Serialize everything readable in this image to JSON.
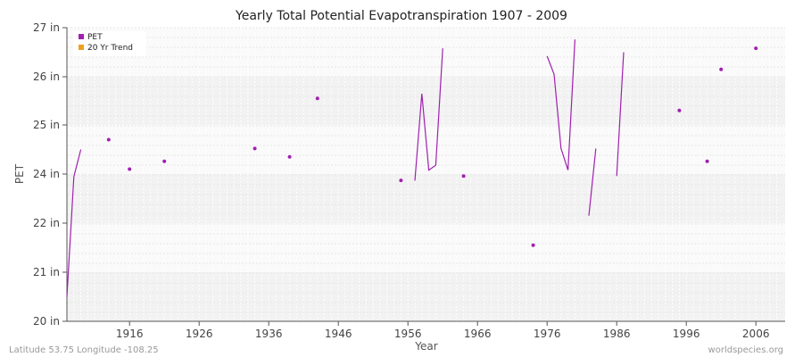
{
  "chart_data": {
    "type": "line",
    "title": "Yearly Total Potential Evapotranspiration 1907 - 2009",
    "xlabel": "Year",
    "ylabel": "PET",
    "xlim": [
      1907,
      2009
    ],
    "y_ticks": [
      {
        "label": "20 in",
        "value": 20
      },
      {
        "label": "21 in",
        "value": 21
      },
      {
        "label": "22 in",
        "value": 22
      },
      {
        "label": "24 in",
        "value": 24
      },
      {
        "label": "25 in",
        "value": 25
      },
      {
        "label": "26 in",
        "value": 26
      },
      {
        "label": "27 in",
        "value": 27
      }
    ],
    "x_ticks": [
      "1916",
      "1926",
      "1936",
      "1946",
      "1956",
      "1966",
      "1976",
      "1986",
      "1996",
      "2006"
    ],
    "grid": true,
    "legend_position": "top-left",
    "series": [
      {
        "name": "PET",
        "color": "#a020b0",
        "points": [
          [
            1907,
            20.5
          ],
          [
            1908,
            23.9
          ],
          [
            1909,
            24.5
          ],
          [
            1913,
            24.7
          ],
          [
            1916,
            24.1
          ],
          [
            1921,
            24.26
          ],
          [
            1934,
            24.52
          ],
          [
            1939,
            24.35
          ],
          [
            1943,
            25.55
          ],
          [
            1955,
            23.74
          ],
          [
            1964,
            23.92
          ],
          [
            1974,
            21.55
          ],
          [
            1957,
            23.73
          ],
          [
            1958,
            25.65
          ],
          [
            1959,
            24.08
          ],
          [
            1960,
            24.18
          ],
          [
            1961,
            26.58
          ],
          [
            1976,
            26.42
          ],
          [
            1977,
            26.05
          ],
          [
            1978,
            24.52
          ],
          [
            1979,
            24.08
          ],
          [
            1980,
            26.76
          ],
          [
            1982,
            22.3
          ],
          [
            1983,
            24.52
          ],
          [
            1986,
            23.92
          ],
          [
            1987,
            26.5
          ],
          [
            1995,
            25.3
          ],
          [
            1999,
            24.26
          ],
          [
            2001,
            26.15
          ],
          [
            2006,
            26.58
          ]
        ],
        "segments": [
          [
            [
              1907,
              20.5
            ],
            [
              1908,
              23.9
            ],
            [
              1909,
              24.5
            ]
          ],
          [
            [
              1957,
              23.73
            ],
            [
              1958,
              25.65
            ],
            [
              1959,
              24.08
            ],
            [
              1960,
              24.18
            ],
            [
              1961,
              26.58
            ]
          ],
          [
            [
              1976,
              26.42
            ],
            [
              1977,
              26.05
            ],
            [
              1978,
              24.52
            ],
            [
              1979,
              24.08
            ],
            [
              1980,
              26.76
            ]
          ],
          [
            [
              1982,
              22.3
            ],
            [
              1983,
              24.52
            ]
          ],
          [
            [
              1986,
              23.92
            ],
            [
              1987,
              26.5
            ]
          ]
        ],
        "isolated": [
          [
            1913,
            24.7
          ],
          [
            1916,
            24.1
          ],
          [
            1921,
            24.26
          ],
          [
            1934,
            24.52
          ],
          [
            1939,
            24.35
          ],
          [
            1943,
            25.55
          ],
          [
            1955,
            23.74
          ],
          [
            1964,
            23.92
          ],
          [
            1974,
            21.55
          ],
          [
            1995,
            25.3
          ],
          [
            1999,
            24.26
          ],
          [
            2001,
            26.15
          ],
          [
            2006,
            26.58
          ]
        ]
      },
      {
        "name": "20 Yr Trend",
        "color": "#f0a020",
        "points": []
      }
    ]
  },
  "footer": {
    "left": "Latitude 53.75 Longitude -108.25",
    "right": "worldspecies.org"
  }
}
